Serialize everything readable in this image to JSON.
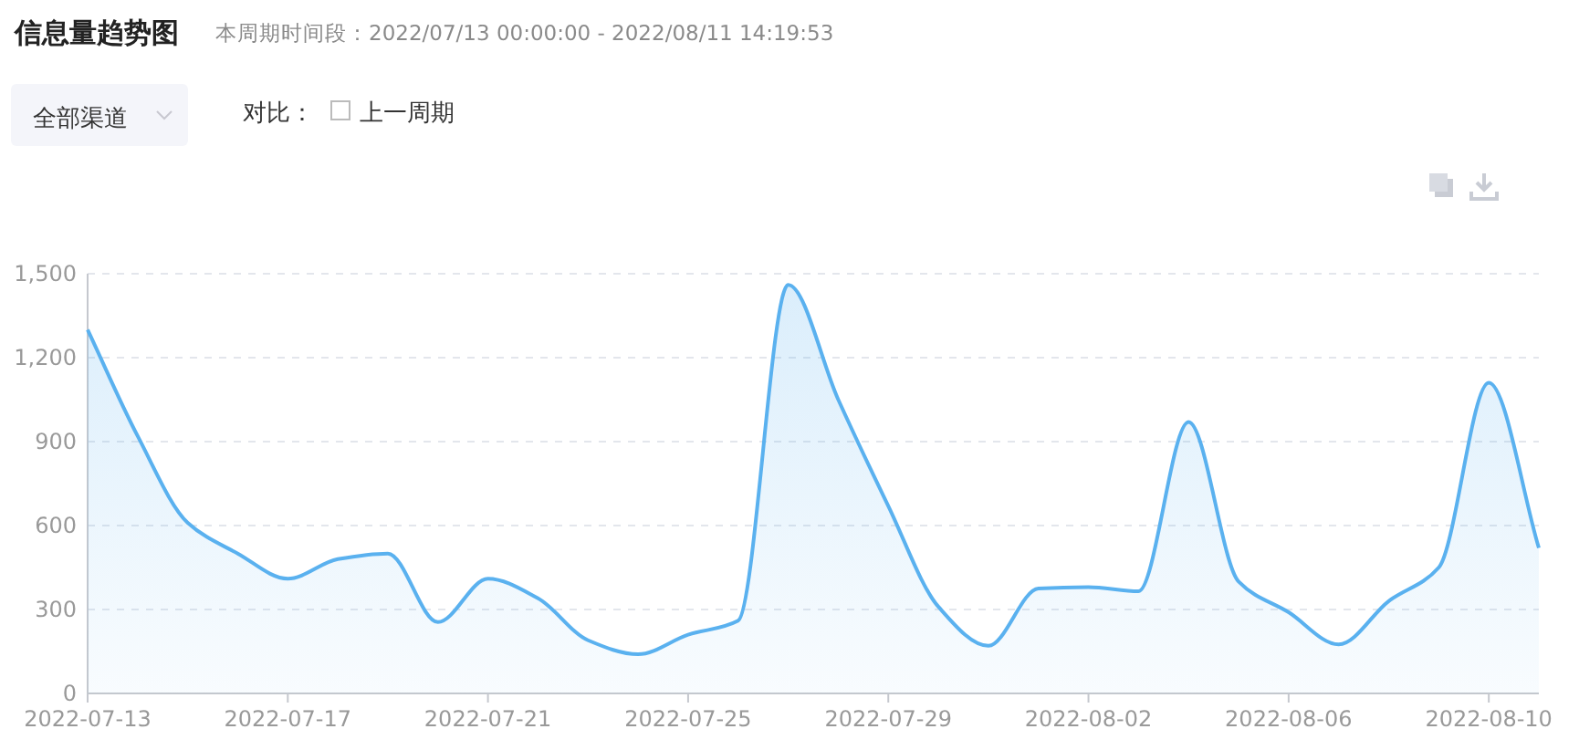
{
  "chart_data": {
    "type": "area",
    "title": "信息量趋势图",
    "subtitle": "本周期时间段：2022/07/13 00:00:00 - 2022/08/11 14:19:53",
    "annotations": [
      "全部渠道",
      "对比：",
      "上一周期"
    ],
    "x": [
      "2022-07-13",
      "2022-07-14",
      "2022-07-15",
      "2022-07-16",
      "2022-07-17",
      "2022-07-18",
      "2022-07-19",
      "2022-07-20",
      "2022-07-21",
      "2022-07-22",
      "2022-07-23",
      "2022-07-24",
      "2022-07-25",
      "2022-07-26",
      "2022-07-27",
      "2022-07-28",
      "2022-07-29",
      "2022-07-30",
      "2022-07-31",
      "2022-08-01",
      "2022-08-02",
      "2022-08-03",
      "2022-08-04",
      "2022-08-05",
      "2022-08-06",
      "2022-08-07",
      "2022-08-08",
      "2022-08-09",
      "2022-08-10",
      "2022-08-11"
    ],
    "series": [
      {
        "color": "#5ab1ef",
        "values": [
          1300,
          920,
          610,
          500,
          410,
          480,
          500,
          255,
          410,
          340,
          190,
          140,
          210,
          260,
          1460,
          1050,
          670,
          310,
          170,
          375,
          380,
          365,
          970,
          400,
          290,
          175,
          330,
          450,
          1110,
          520
        ]
      }
    ],
    "xlim": [
      "2022-07-13",
      "2022-08-11"
    ],
    "xticks": [
      "2022-07-13",
      "2022-07-17",
      "2022-07-21",
      "2022-07-25",
      "2022-07-29",
      "2022-08-02",
      "2022-08-06",
      "2022-08-10"
    ],
    "ylim": [
      0,
      1500
    ],
    "yticks": [
      0,
      300,
      600,
      900,
      {
        "value": 1200,
        "label": "1,200"
      },
      {
        "value": 1500,
        "label": "1,500"
      }
    ],
    "grid": "y"
  }
}
